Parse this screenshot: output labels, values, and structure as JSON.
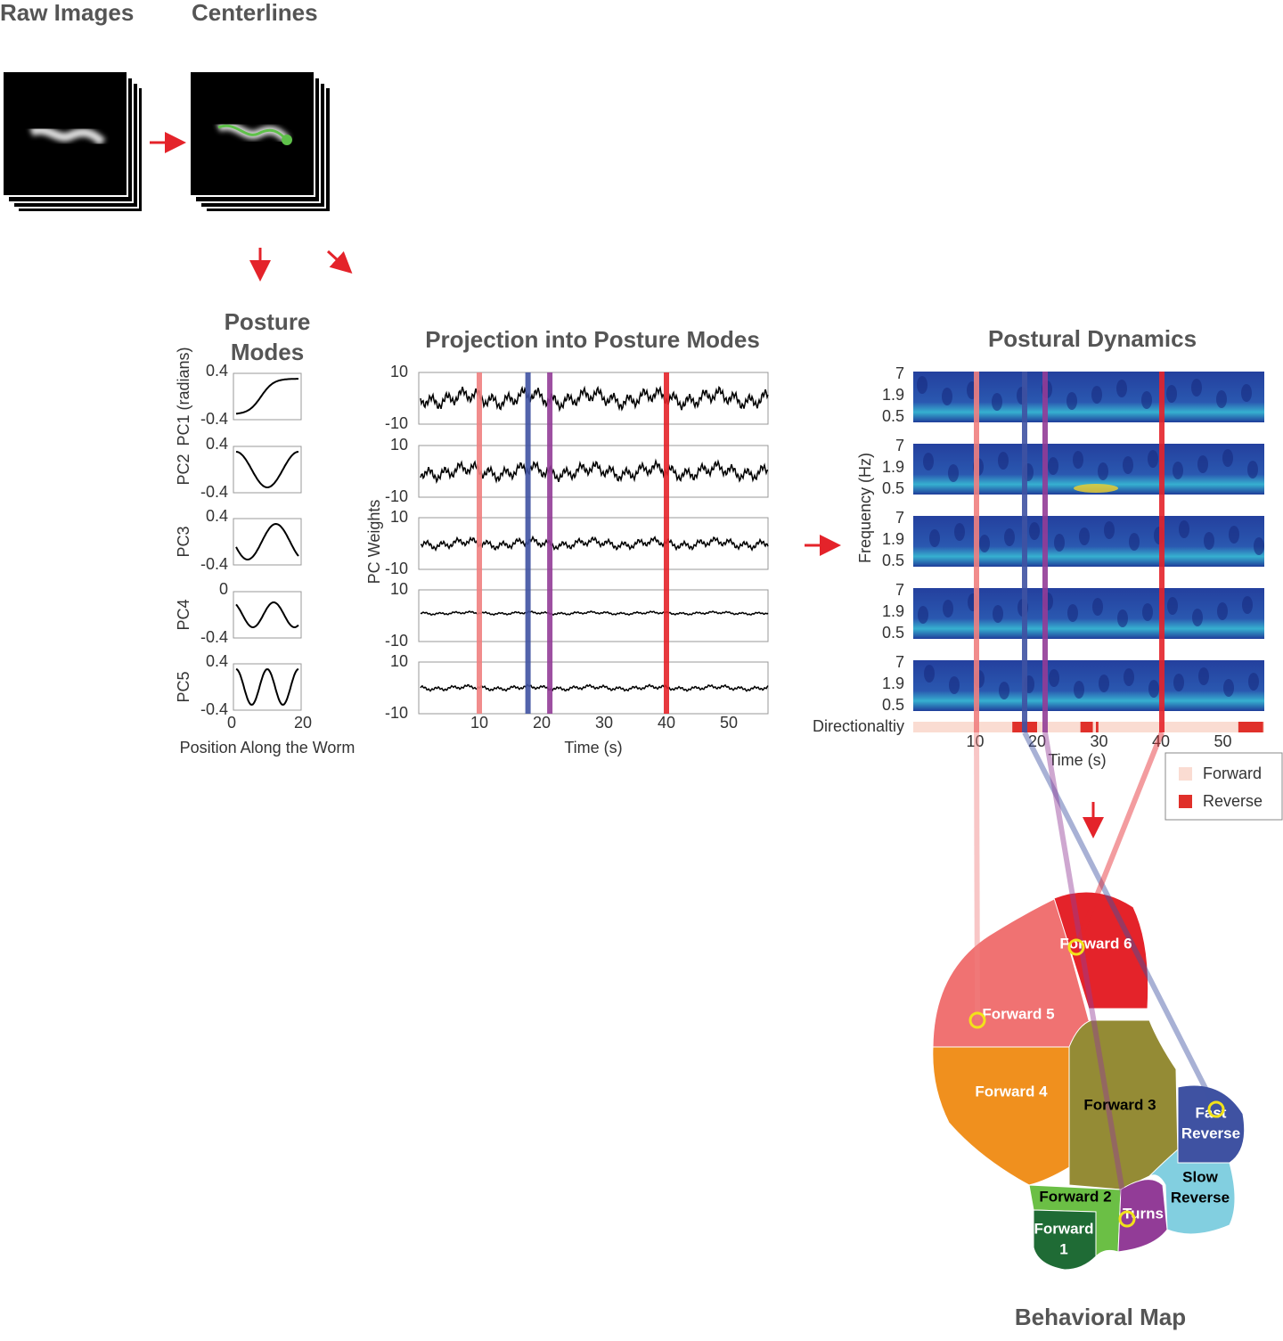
{
  "raw_images": {
    "title": "Raw Images"
  },
  "centerlines": {
    "title": "Centerlines"
  },
  "posture_modes": {
    "title_lines": [
      "Posture",
      "Modes"
    ],
    "panels": [
      {
        "label": "PC1 (radians)",
        "ticks": [
          0.4,
          -0.4
        ]
      },
      {
        "label": "PC2",
        "ticks": [
          0.4,
          -0.4
        ]
      },
      {
        "label": "PC3",
        "ticks": [
          0.4,
          -0.4
        ]
      },
      {
        "label": "PC4",
        "ticks": [
          0,
          -0.4
        ]
      },
      {
        "label": "PC5",
        "ticks": [
          0.4,
          -0.4
        ]
      }
    ],
    "x_ticks": [
      0,
      20
    ],
    "x_label": "Position Along the Worm"
  },
  "projection": {
    "title": "Projection into Posture Modes",
    "y_label": "PC Weights",
    "y_ticks": [
      10,
      -10
    ],
    "x_ticks": [
      10,
      20,
      30,
      40,
      50
    ],
    "x_label": "Time (s)"
  },
  "postural_dynamics": {
    "title": "Postural Dynamics",
    "y_label": "Frequency (Hz)",
    "y_ticks": [
      7,
      1.9,
      0.5
    ],
    "directionality_label": "Directionaltiy",
    "x_ticks": [
      10,
      20,
      30,
      40,
      50
    ],
    "x_label": "Time (s)",
    "legend": [
      "Forward",
      "Reverse"
    ]
  },
  "behavioral_map": {
    "title": "Behavioral Map",
    "regions": [
      {
        "lines": [
          "Forward 6"
        ]
      },
      {
        "lines": [
          "Forward 5"
        ]
      },
      {
        "lines": [
          "Forward 4"
        ]
      },
      {
        "lines": [
          "Forward 3"
        ]
      },
      {
        "lines": [
          "Fast",
          "Reverse"
        ]
      },
      {
        "lines": [
          "Slow",
          "Reverse"
        ]
      },
      {
        "lines": [
          "Forward 2"
        ]
      },
      {
        "lines": [
          "Forward",
          "1"
        ]
      },
      {
        "lines": [
          "Turns"
        ]
      }
    ]
  }
}
